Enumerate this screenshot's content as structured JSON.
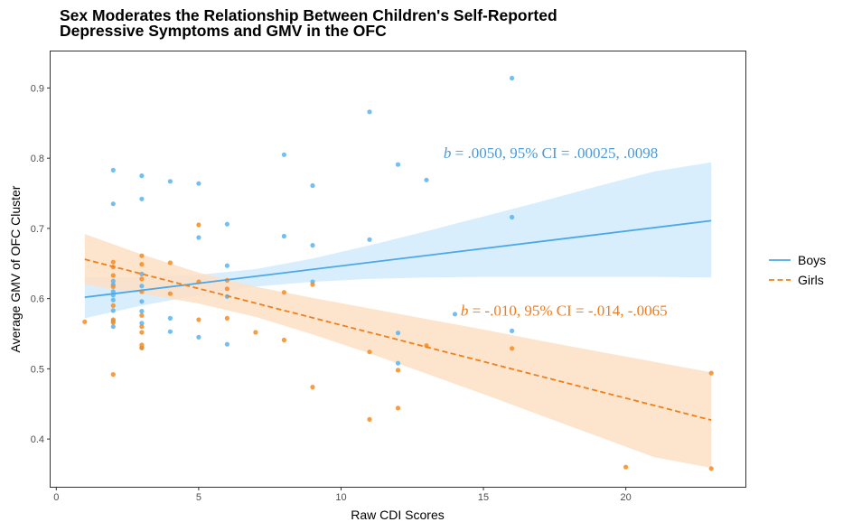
{
  "chart_data": {
    "type": "scatter",
    "title_lines": [
      "Sex Moderates the Relationship Between Children's Self-Reported",
      "Depressive Symptoms and GMV in the OFC"
    ],
    "xlabel": "Raw CDI Scores",
    "ylabel": "Average GMV of OFC Cluster",
    "xlim": [
      -0.2,
      24.2
    ],
    "ylim": [
      0.332,
      0.952
    ],
    "xticks": [
      0,
      5,
      10,
      15,
      20
    ],
    "yticks": [
      0.4,
      0.5,
      0.6,
      0.7,
      0.8,
      0.9
    ],
    "ytick_labels": [
      "0.4",
      "0.5",
      "0.6",
      "0.7",
      "0.8",
      "0.9"
    ],
    "grid": false,
    "legend_position": "right",
    "series": [
      {
        "name": "Boys",
        "color": "#4aa8e8",
        "fill": "#d2ebfb",
        "point_color": "#5bb4ee",
        "line_style": "solid",
        "points": [
          [
            2,
            0.783
          ],
          [
            2,
            0.735
          ],
          [
            2,
            0.625
          ],
          [
            2,
            0.62
          ],
          [
            2,
            0.61
          ],
          [
            2,
            0.605
          ],
          [
            2,
            0.598
          ],
          [
            2,
            0.583
          ],
          [
            2,
            0.568
          ],
          [
            2,
            0.56
          ],
          [
            3,
            0.775
          ],
          [
            3,
            0.742
          ],
          [
            3,
            0.635
          ],
          [
            3,
            0.618
          ],
          [
            3,
            0.596
          ],
          [
            3,
            0.582
          ],
          [
            3,
            0.565
          ],
          [
            3,
            0.53
          ],
          [
            4,
            0.767
          ],
          [
            4,
            0.572
          ],
          [
            4,
            0.553
          ],
          [
            5,
            0.764
          ],
          [
            5,
            0.687
          ],
          [
            5,
            0.545
          ],
          [
            6,
            0.706
          ],
          [
            6,
            0.647
          ],
          [
            6,
            0.603
          ],
          [
            6,
            0.535
          ],
          [
            8,
            0.805
          ],
          [
            8,
            0.689
          ],
          [
            9,
            0.761
          ],
          [
            9,
            0.676
          ],
          [
            9,
            0.624
          ],
          [
            11,
            0.866
          ],
          [
            11,
            0.684
          ],
          [
            12,
            0.791
          ],
          [
            12,
            0.551
          ],
          [
            12,
            0.508
          ],
          [
            13,
            0.769
          ],
          [
            14,
            0.578
          ],
          [
            16,
            0.914
          ],
          [
            16,
            0.716
          ],
          [
            16,
            0.554
          ]
        ],
        "fit": [
          [
            1,
            0.602
          ],
          [
            23,
            0.711
          ]
        ],
        "ci_band": {
          "x": [
            1,
            3,
            5,
            7,
            9,
            11,
            13,
            15,
            17,
            19,
            21,
            23
          ],
          "upper": [
            0.63,
            0.631,
            0.634,
            0.642,
            0.657,
            0.676,
            0.696,
            0.717,
            0.738,
            0.76,
            0.781,
            0.794
          ],
          "lower": [
            0.572,
            0.59,
            0.605,
            0.617,
            0.624,
            0.628,
            0.63,
            0.631,
            0.631,
            0.631,
            0.631,
            0.63
          ]
        }
      },
      {
        "name": "Girls",
        "color": "#f07f1a",
        "fill": "#fddfc4",
        "point_color": "#f58c22",
        "line_style": "dashed",
        "points": [
          [
            1,
            0.567
          ],
          [
            2,
            0.652
          ],
          [
            2,
            0.645
          ],
          [
            2,
            0.633
          ],
          [
            2,
            0.617
          ],
          [
            2,
            0.59
          ],
          [
            2,
            0.57
          ],
          [
            2,
            0.566
          ],
          [
            2,
            0.492
          ],
          [
            3,
            0.661
          ],
          [
            3,
            0.649
          ],
          [
            3,
            0.628
          ],
          [
            3,
            0.61
          ],
          [
            3,
            0.576
          ],
          [
            3,
            0.56
          ],
          [
            3,
            0.552
          ],
          [
            3,
            0.534
          ],
          [
            3,
            0.53
          ],
          [
            4,
            0.651
          ],
          [
            4,
            0.607
          ],
          [
            5,
            0.705
          ],
          [
            5,
            0.624
          ],
          [
            5,
            0.57
          ],
          [
            6,
            0.626
          ],
          [
            6,
            0.614
          ],
          [
            6,
            0.572
          ],
          [
            7,
            0.552
          ],
          [
            8,
            0.609
          ],
          [
            8,
            0.541
          ],
          [
            9,
            0.62
          ],
          [
            9,
            0.474
          ],
          [
            11,
            0.524
          ],
          [
            11,
            0.428
          ],
          [
            12,
            0.498
          ],
          [
            12,
            0.444
          ],
          [
            13,
            0.533
          ],
          [
            16,
            0.529
          ],
          [
            20,
            0.36
          ],
          [
            23,
            0.494
          ],
          [
            23,
            0.358
          ]
        ],
        "fit": [
          [
            1,
            0.656
          ],
          [
            23,
            0.427
          ]
        ],
        "ci_band": {
          "x": [
            1,
            3,
            5,
            7,
            9,
            11,
            13,
            15,
            17,
            19,
            21,
            23
          ],
          "upper": [
            0.692,
            0.663,
            0.637,
            0.617,
            0.601,
            0.586,
            0.571,
            0.556,
            0.54,
            0.525,
            0.51,
            0.495
          ],
          "lower": [
            0.62,
            0.607,
            0.593,
            0.574,
            0.549,
            0.522,
            0.493,
            0.464,
            0.434,
            0.404,
            0.374,
            0.359
          ]
        }
      }
    ],
    "annotations": [
      {
        "b_label": "b",
        "text": " = .0050, 95% CI = .00025, .0098",
        "x": 13.6,
        "y": 0.8,
        "color": "#4a9bd9"
      },
      {
        "b_label": "b",
        "text": " = -.010, 95% CI = -.014, -.0065",
        "x": 14.2,
        "y": 0.576,
        "color": "#ee7d1e"
      }
    ]
  }
}
